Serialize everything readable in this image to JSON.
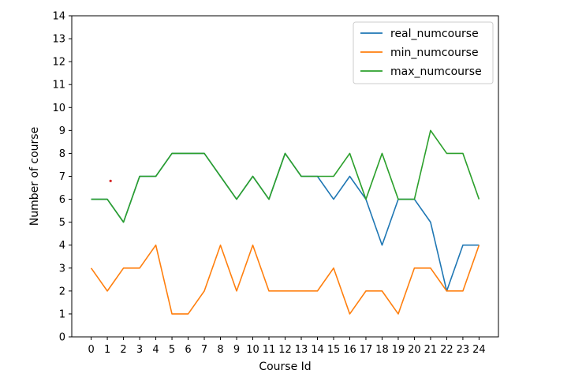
{
  "chart_data": {
    "type": "line",
    "title": "",
    "xlabel": "Course Id",
    "ylabel": "Number of course",
    "x": [
      0,
      1,
      2,
      3,
      4,
      5,
      6,
      7,
      8,
      9,
      10,
      11,
      12,
      13,
      14,
      15,
      16,
      17,
      18,
      19,
      20,
      21,
      22,
      23,
      24
    ],
    "xlim": [
      -1.2,
      25.2
    ],
    "ylim": [
      0,
      14
    ],
    "yticks": [
      0,
      1,
      2,
      3,
      4,
      5,
      6,
      7,
      8,
      9,
      10,
      11,
      12,
      13,
      14
    ],
    "grid": false,
    "legend_position": "top-right",
    "series": [
      {
        "name": "real_numcourse",
        "color": "#1f77b4",
        "values": [
          6,
          6,
          5,
          7,
          7,
          8,
          8,
          8,
          7,
          6,
          7,
          6,
          8,
          7,
          7,
          6,
          7,
          6,
          4,
          6,
          6,
          5,
          2,
          4,
          4
        ]
      },
      {
        "name": "min_numcourse",
        "color": "#ff7f0e",
        "values": [
          3,
          2,
          3,
          3,
          4,
          1,
          1,
          2,
          4,
          2,
          4,
          2,
          2,
          2,
          2,
          3,
          1,
          2,
          2,
          1,
          3,
          3,
          2,
          2,
          4
        ]
      },
      {
        "name": "max_numcourse",
        "color": "#2ca02c",
        "values": [
          6,
          6,
          5,
          7,
          7,
          8,
          8,
          8,
          7,
          6,
          7,
          6,
          8,
          7,
          7,
          7,
          8,
          6,
          8,
          6,
          6,
          9,
          8,
          8,
          6
        ]
      }
    ],
    "annotations": [
      {
        "type": "dot",
        "x": 1.2,
        "y": 6.8,
        "color": "#d62728"
      }
    ]
  }
}
